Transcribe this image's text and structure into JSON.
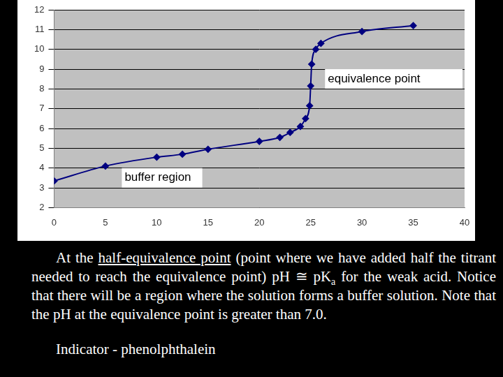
{
  "chart_data": {
    "type": "line",
    "x": [
      0,
      5,
      10,
      12.5,
      15,
      20,
      22,
      23,
      24,
      24.5,
      24.9,
      25,
      25.1,
      25.5,
      26,
      30,
      35
    ],
    "values": [
      3.35,
      4.1,
      4.55,
      4.7,
      4.95,
      5.35,
      5.55,
      5.8,
      6.1,
      6.5,
      7.15,
      8.15,
      9.25,
      10.0,
      10.3,
      10.9,
      11.2
    ],
    "color": "#000080",
    "marker": "diamond",
    "xlim": [
      0,
      40
    ],
    "xticks": [
      0,
      5,
      10,
      15,
      20,
      25,
      30,
      35,
      40
    ],
    "ylim": [
      2,
      12
    ],
    "yticks": [
      2,
      3,
      4,
      5,
      6,
      7,
      8,
      9,
      10,
      11,
      12
    ],
    "grid": "y",
    "annotations": [
      "buffer region",
      "equivalence point"
    ]
  },
  "text": {
    "paragraph": [
      {
        "text": "At the "
      },
      {
        "text": "half-equivalence point",
        "underline": true
      },
      {
        "text": " (point where we have added half the titrant needed to reach the equivalence point) pH ≅ pK"
      },
      {
        "text": "a",
        "sub": true
      },
      {
        "text": " for the weak acid.  Notice that there will be a region where the solution forms a buffer solution.  Note that the pH at the equivalence point is greater than 7.0."
      }
    ],
    "indicator": "Indicator - phenolphthalein"
  }
}
